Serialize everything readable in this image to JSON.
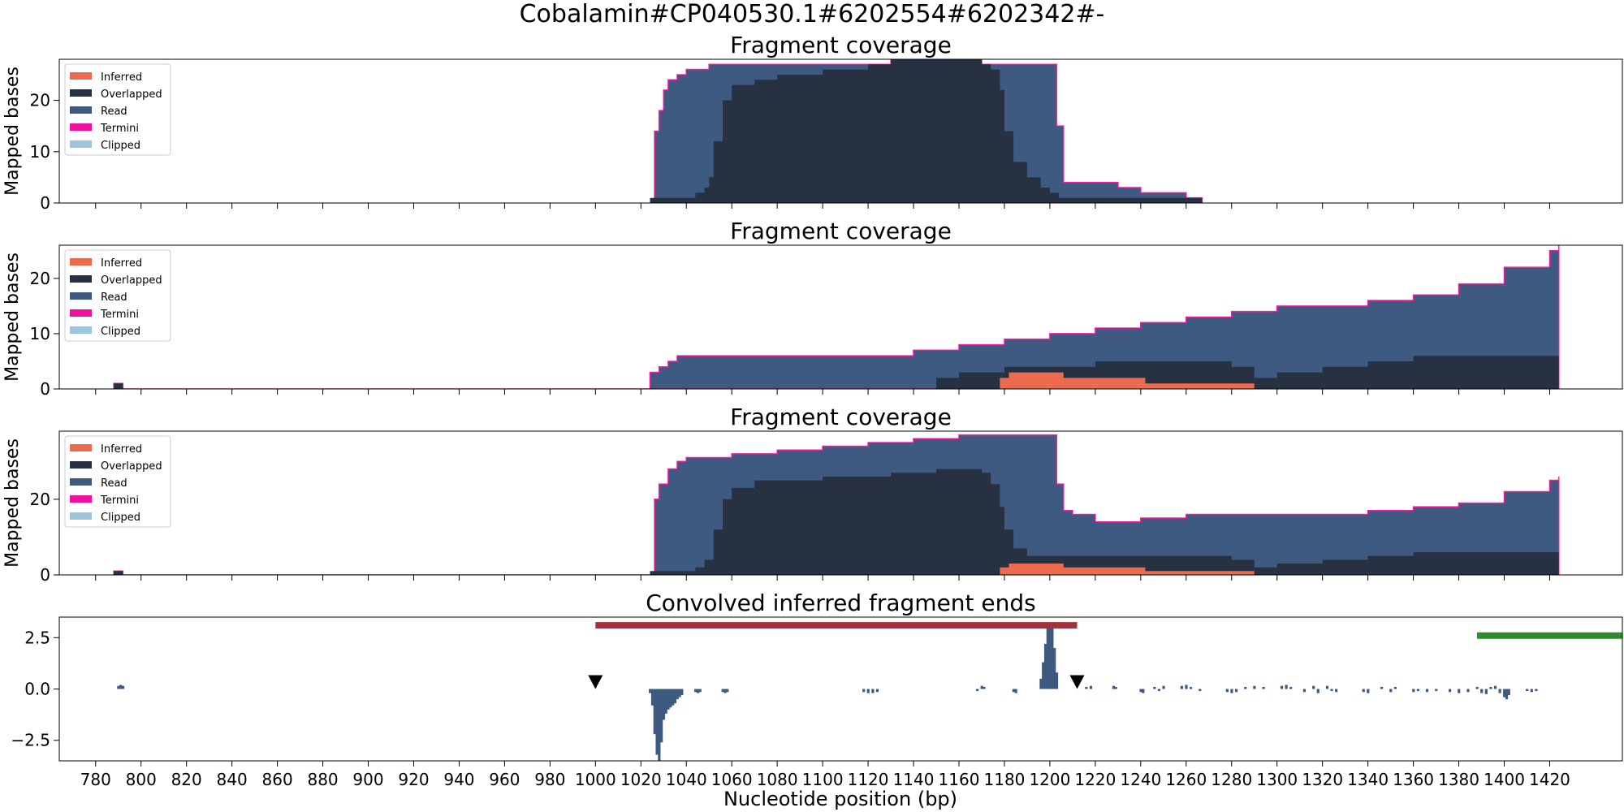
{
  "figure": {
    "suptitle": "Cobalamin#CP040530.1#6202554#6202342#-",
    "xlabel": "Nucleotide position (bp)",
    "xticks": [
      780,
      800,
      820,
      840,
      860,
      880,
      900,
      920,
      940,
      960,
      980,
      1000,
      1020,
      1040,
      1060,
      1080,
      1100,
      1120,
      1140,
      1160,
      1180,
      1200,
      1220,
      1240,
      1260,
      1280,
      1300,
      1320,
      1340,
      1360,
      1380,
      1400,
      1420
    ]
  },
  "colors": {
    "Inferred": "#ec6b4f",
    "Overlapped": "#283142",
    "Read": "#3e5a80",
    "Termini": "#f0109d",
    "Clipped": "#9ec3dc",
    "bar_red": "#a3303a",
    "bar_green": "#2e8b2e",
    "marker": "#000000"
  },
  "chart_data": [
    {
      "type": "area",
      "title": "Fragment coverage",
      "ylabel": "Mapped bases",
      "ylim": [
        0,
        28
      ],
      "yticks": [
        0,
        10,
        20
      ],
      "legend": [
        "Inferred",
        "Overlapped",
        "Read",
        "Termini",
        "Clipped"
      ],
      "legend_position": "upper left",
      "series": [
        {
          "name": "Read",
          "x": [
            1024,
            1026,
            1028,
            1030,
            1032,
            1036,
            1040,
            1044,
            1050,
            1060,
            1070,
            1100,
            1130,
            1150,
            1170,
            1180,
            1190,
            1200,
            1203,
            1206,
            1210,
            1230,
            1240,
            1260,
            1267
          ],
          "values": [
            0,
            14,
            18,
            22,
            24,
            25,
            26,
            26,
            27,
            27,
            27,
            27,
            28,
            28,
            27,
            27,
            27,
            27,
            15,
            4,
            4,
            3,
            2,
            1,
            0
          ]
        },
        {
          "name": "Overlapped",
          "x": [
            1024,
            1034,
            1036,
            1040,
            1044,
            1048,
            1050,
            1052,
            1056,
            1060,
            1070,
            1080,
            1100,
            1120,
            1130,
            1150,
            1160,
            1170,
            1174,
            1178,
            1180,
            1184,
            1190,
            1196,
            1200,
            1204,
            1208,
            1220,
            1250,
            1267
          ],
          "values": [
            1,
            1,
            1,
            1,
            2,
            3,
            5,
            12,
            20,
            23,
            24,
            25,
            26,
            27,
            28,
            28,
            28,
            27,
            26,
            22,
            14,
            8,
            5,
            3,
            2,
            1,
            1,
            1,
            1,
            0
          ]
        }
      ]
    },
    {
      "type": "area",
      "title": "Fragment coverage",
      "ylabel": "Mapped bases",
      "ylim": [
        0,
        26
      ],
      "yticks": [
        0,
        10,
        20
      ],
      "legend": [
        "Inferred",
        "Overlapped",
        "Read",
        "Termini",
        "Clipped"
      ],
      "legend_position": "upper left",
      "series": [
        {
          "name": "Read",
          "x": [
            788,
            790,
            792,
            1024,
            1028,
            1032,
            1036,
            1040,
            1100,
            1120,
            1140,
            1160,
            1180,
            1200,
            1220,
            1240,
            1260,
            1280,
            1300,
            1320,
            1340,
            1360,
            1380,
            1400,
            1420,
            1424
          ],
          "values": [
            1,
            1,
            0,
            3,
            4,
            5,
            6,
            6,
            6,
            6,
            7,
            8,
            9,
            10,
            11,
            12,
            13,
            14,
            15,
            15,
            16,
            17,
            19,
            22,
            25,
            26
          ]
        },
        {
          "name": "Overlapped",
          "x": [
            788,
            790,
            792,
            1140,
            1150,
            1160,
            1170,
            1180,
            1190,
            1200,
            1210,
            1220,
            1240,
            1260,
            1280,
            1290,
            1300,
            1320,
            1340,
            1360,
            1380,
            1400,
            1420,
            1424
          ],
          "values": [
            1,
            1,
            0,
            0,
            2,
            3,
            3,
            4,
            4,
            4,
            4,
            5,
            5,
            5,
            4,
            2,
            3,
            4,
            5,
            6,
            6,
            6,
            6,
            6
          ]
        },
        {
          "name": "Inferred",
          "x": [
            1178,
            1182,
            1200,
            1206,
            1224,
            1242,
            1260,
            1282,
            1290
          ],
          "values": [
            2,
            3,
            3,
            2,
            2,
            1,
            1,
            1,
            0
          ]
        }
      ]
    },
    {
      "type": "area",
      "title": "Fragment coverage",
      "ylabel": "Mapped bases",
      "ylim": [
        0,
        38
      ],
      "yticks": [
        0,
        20
      ],
      "legend": [
        "Inferred",
        "Overlapped",
        "Read",
        "Termini",
        "Clipped"
      ],
      "legend_position": "upper left",
      "series": [
        {
          "name": "Read",
          "x": [
            788,
            790,
            792,
            1024,
            1026,
            1028,
            1032,
            1036,
            1040,
            1060,
            1080,
            1100,
            1120,
            1140,
            1160,
            1180,
            1190,
            1200,
            1203,
            1206,
            1210,
            1220,
            1240,
            1260,
            1280,
            1300,
            1320,
            1340,
            1360,
            1380,
            1400,
            1420,
            1424
          ],
          "values": [
            1,
            1,
            0,
            0,
            20,
            24,
            28,
            30,
            31,
            32,
            33,
            34,
            35,
            36,
            37,
            37,
            37,
            37,
            24,
            17,
            16,
            14,
            15,
            16,
            16,
            16,
            16,
            17,
            18,
            19,
            22,
            25,
            26
          ]
        },
        {
          "name": "Overlapped",
          "x": [
            788,
            790,
            792,
            1024,
            1034,
            1044,
            1048,
            1052,
            1056,
            1060,
            1070,
            1100,
            1130,
            1150,
            1160,
            1170,
            1174,
            1178,
            1180,
            1184,
            1190,
            1200,
            1220,
            1240,
            1260,
            1280,
            1290,
            1300,
            1320,
            1340,
            1360,
            1380,
            1400,
            1420,
            1424
          ],
          "values": [
            1,
            1,
            0,
            1,
            1,
            2,
            4,
            12,
            20,
            23,
            25,
            26,
            27,
            28,
            28,
            27,
            24,
            18,
            12,
            7,
            5,
            5,
            5,
            5,
            5,
            4,
            2,
            3,
            4,
            5,
            6,
            6,
            6,
            6,
            6
          ]
        },
        {
          "name": "Inferred",
          "x": [
            1178,
            1182,
            1200,
            1206,
            1224,
            1242,
            1260,
            1282,
            1290
          ],
          "values": [
            2,
            3,
            3,
            2,
            2,
            1,
            1,
            1,
            0
          ]
        }
      ]
    },
    {
      "type": "bar",
      "title": "Convolved inferred fragment ends",
      "ylim": [
        -3.5,
        3.5
      ],
      "yticks": [
        2.5,
        0.0,
        -2.5
      ],
      "ytick_labels": [
        "2.5",
        "0.0",
        "−2.5"
      ],
      "bins": [
        {
          "x": 790,
          "v": 0.15
        },
        {
          "x": 791,
          "v": 0.2
        },
        {
          "x": 792,
          "v": 0.15
        },
        {
          "x": 1024,
          "v": -0.2
        },
        {
          "x": 1025,
          "v": -0.8
        },
        {
          "x": 1026,
          "v": -2.2
        },
        {
          "x": 1027,
          "v": -3.2
        },
        {
          "x": 1028,
          "v": -4.3
        },
        {
          "x": 1029,
          "v": -2.6
        },
        {
          "x": 1030,
          "v": -1.5
        },
        {
          "x": 1031,
          "v": -1.2
        },
        {
          "x": 1032,
          "v": -1.0
        },
        {
          "x": 1033,
          "v": -0.9
        },
        {
          "x": 1034,
          "v": -0.8
        },
        {
          "x": 1035,
          "v": -0.7
        },
        {
          "x": 1036,
          "v": -0.5
        },
        {
          "x": 1037,
          "v": -0.4
        },
        {
          "x": 1038,
          "v": -0.3
        },
        {
          "x": 1044,
          "v": -0.15
        },
        {
          "x": 1045,
          "v": -0.2
        },
        {
          "x": 1046,
          "v": -0.15
        },
        {
          "x": 1056,
          "v": -0.15
        },
        {
          "x": 1057,
          "v": -0.2
        },
        {
          "x": 1058,
          "v": -0.15
        },
        {
          "x": 1118,
          "v": -0.15
        },
        {
          "x": 1120,
          "v": -0.2
        },
        {
          "x": 1122,
          "v": -0.2
        },
        {
          "x": 1124,
          "v": -0.15
        },
        {
          "x": 1168,
          "v": -0.1
        },
        {
          "x": 1170,
          "v": 0.15
        },
        {
          "x": 1171,
          "v": 0.1
        },
        {
          "x": 1184,
          "v": -0.15
        },
        {
          "x": 1185,
          "v": -0.2
        },
        {
          "x": 1196,
          "v": 0.5
        },
        {
          "x": 1197,
          "v": 1.3
        },
        {
          "x": 1198,
          "v": 2.2
        },
        {
          "x": 1199,
          "v": 3.0
        },
        {
          "x": 1200,
          "v": 3.2
        },
        {
          "x": 1201,
          "v": 3.0
        },
        {
          "x": 1202,
          "v": 2.0
        },
        {
          "x": 1203,
          "v": 0.8
        },
        {
          "x": 1216,
          "v": 0.1
        },
        {
          "x": 1218,
          "v": 0.15
        },
        {
          "x": 1228,
          "v": 0.15
        },
        {
          "x": 1229,
          "v": 0.1
        },
        {
          "x": 1240,
          "v": -0.15
        },
        {
          "x": 1241,
          "v": -0.2
        },
        {
          "x": 1246,
          "v": 0.1
        },
        {
          "x": 1248,
          "v": -0.1
        },
        {
          "x": 1250,
          "v": 0.15
        },
        {
          "x": 1258,
          "v": 0.15
        },
        {
          "x": 1260,
          "v": 0.2
        },
        {
          "x": 1262,
          "v": 0.1
        },
        {
          "x": 1266,
          "v": -0.1
        },
        {
          "x": 1278,
          "v": -0.15
        },
        {
          "x": 1280,
          "v": -0.2
        },
        {
          "x": 1282,
          "v": -0.15
        },
        {
          "x": 1286,
          "v": 0.1
        },
        {
          "x": 1290,
          "v": 0.15
        },
        {
          "x": 1294,
          "v": 0.1
        },
        {
          "x": 1302,
          "v": 0.15
        },
        {
          "x": 1304,
          "v": 0.2
        },
        {
          "x": 1306,
          "v": 0.1
        },
        {
          "x": 1312,
          "v": -0.15
        },
        {
          "x": 1316,
          "v": 0.15
        },
        {
          "x": 1318,
          "v": -0.2
        },
        {
          "x": 1322,
          "v": 0.15
        },
        {
          "x": 1324,
          "v": -0.1
        },
        {
          "x": 1326,
          "v": -0.15
        },
        {
          "x": 1338,
          "v": -0.15
        },
        {
          "x": 1340,
          "v": -0.2
        },
        {
          "x": 1346,
          "v": 0.1
        },
        {
          "x": 1350,
          "v": -0.15
        },
        {
          "x": 1352,
          "v": 0.1
        },
        {
          "x": 1360,
          "v": -0.15
        },
        {
          "x": 1362,
          "v": -0.1
        },
        {
          "x": 1366,
          "v": -0.15
        },
        {
          "x": 1370,
          "v": -0.1
        },
        {
          "x": 1376,
          "v": -0.15
        },
        {
          "x": 1380,
          "v": -0.2
        },
        {
          "x": 1384,
          "v": -0.15
        },
        {
          "x": 1388,
          "v": 0.1
        },
        {
          "x": 1390,
          "v": -0.2
        },
        {
          "x": 1392,
          "v": -0.25
        },
        {
          "x": 1394,
          "v": 0.1
        },
        {
          "x": 1396,
          "v": 0.15
        },
        {
          "x": 1398,
          "v": -0.2
        },
        {
          "x": 1400,
          "v": -0.4
        },
        {
          "x": 1401,
          "v": -0.5
        },
        {
          "x": 1402,
          "v": -0.3
        },
        {
          "x": 1410,
          "v": -0.1
        },
        {
          "x": 1412,
          "v": -0.15
        },
        {
          "x": 1414,
          "v": -0.1
        }
      ],
      "segments": [
        {
          "x0": 1000,
          "x1": 1212,
          "y": 3.1,
          "color": "bar_red"
        },
        {
          "x0": 1388,
          "x1": 1452,
          "y": 2.6,
          "color": "bar_green"
        }
      ],
      "markers": [
        {
          "x": 1000,
          "y": 0.2
        },
        {
          "x": 1212,
          "y": 0.2
        }
      ]
    }
  ]
}
